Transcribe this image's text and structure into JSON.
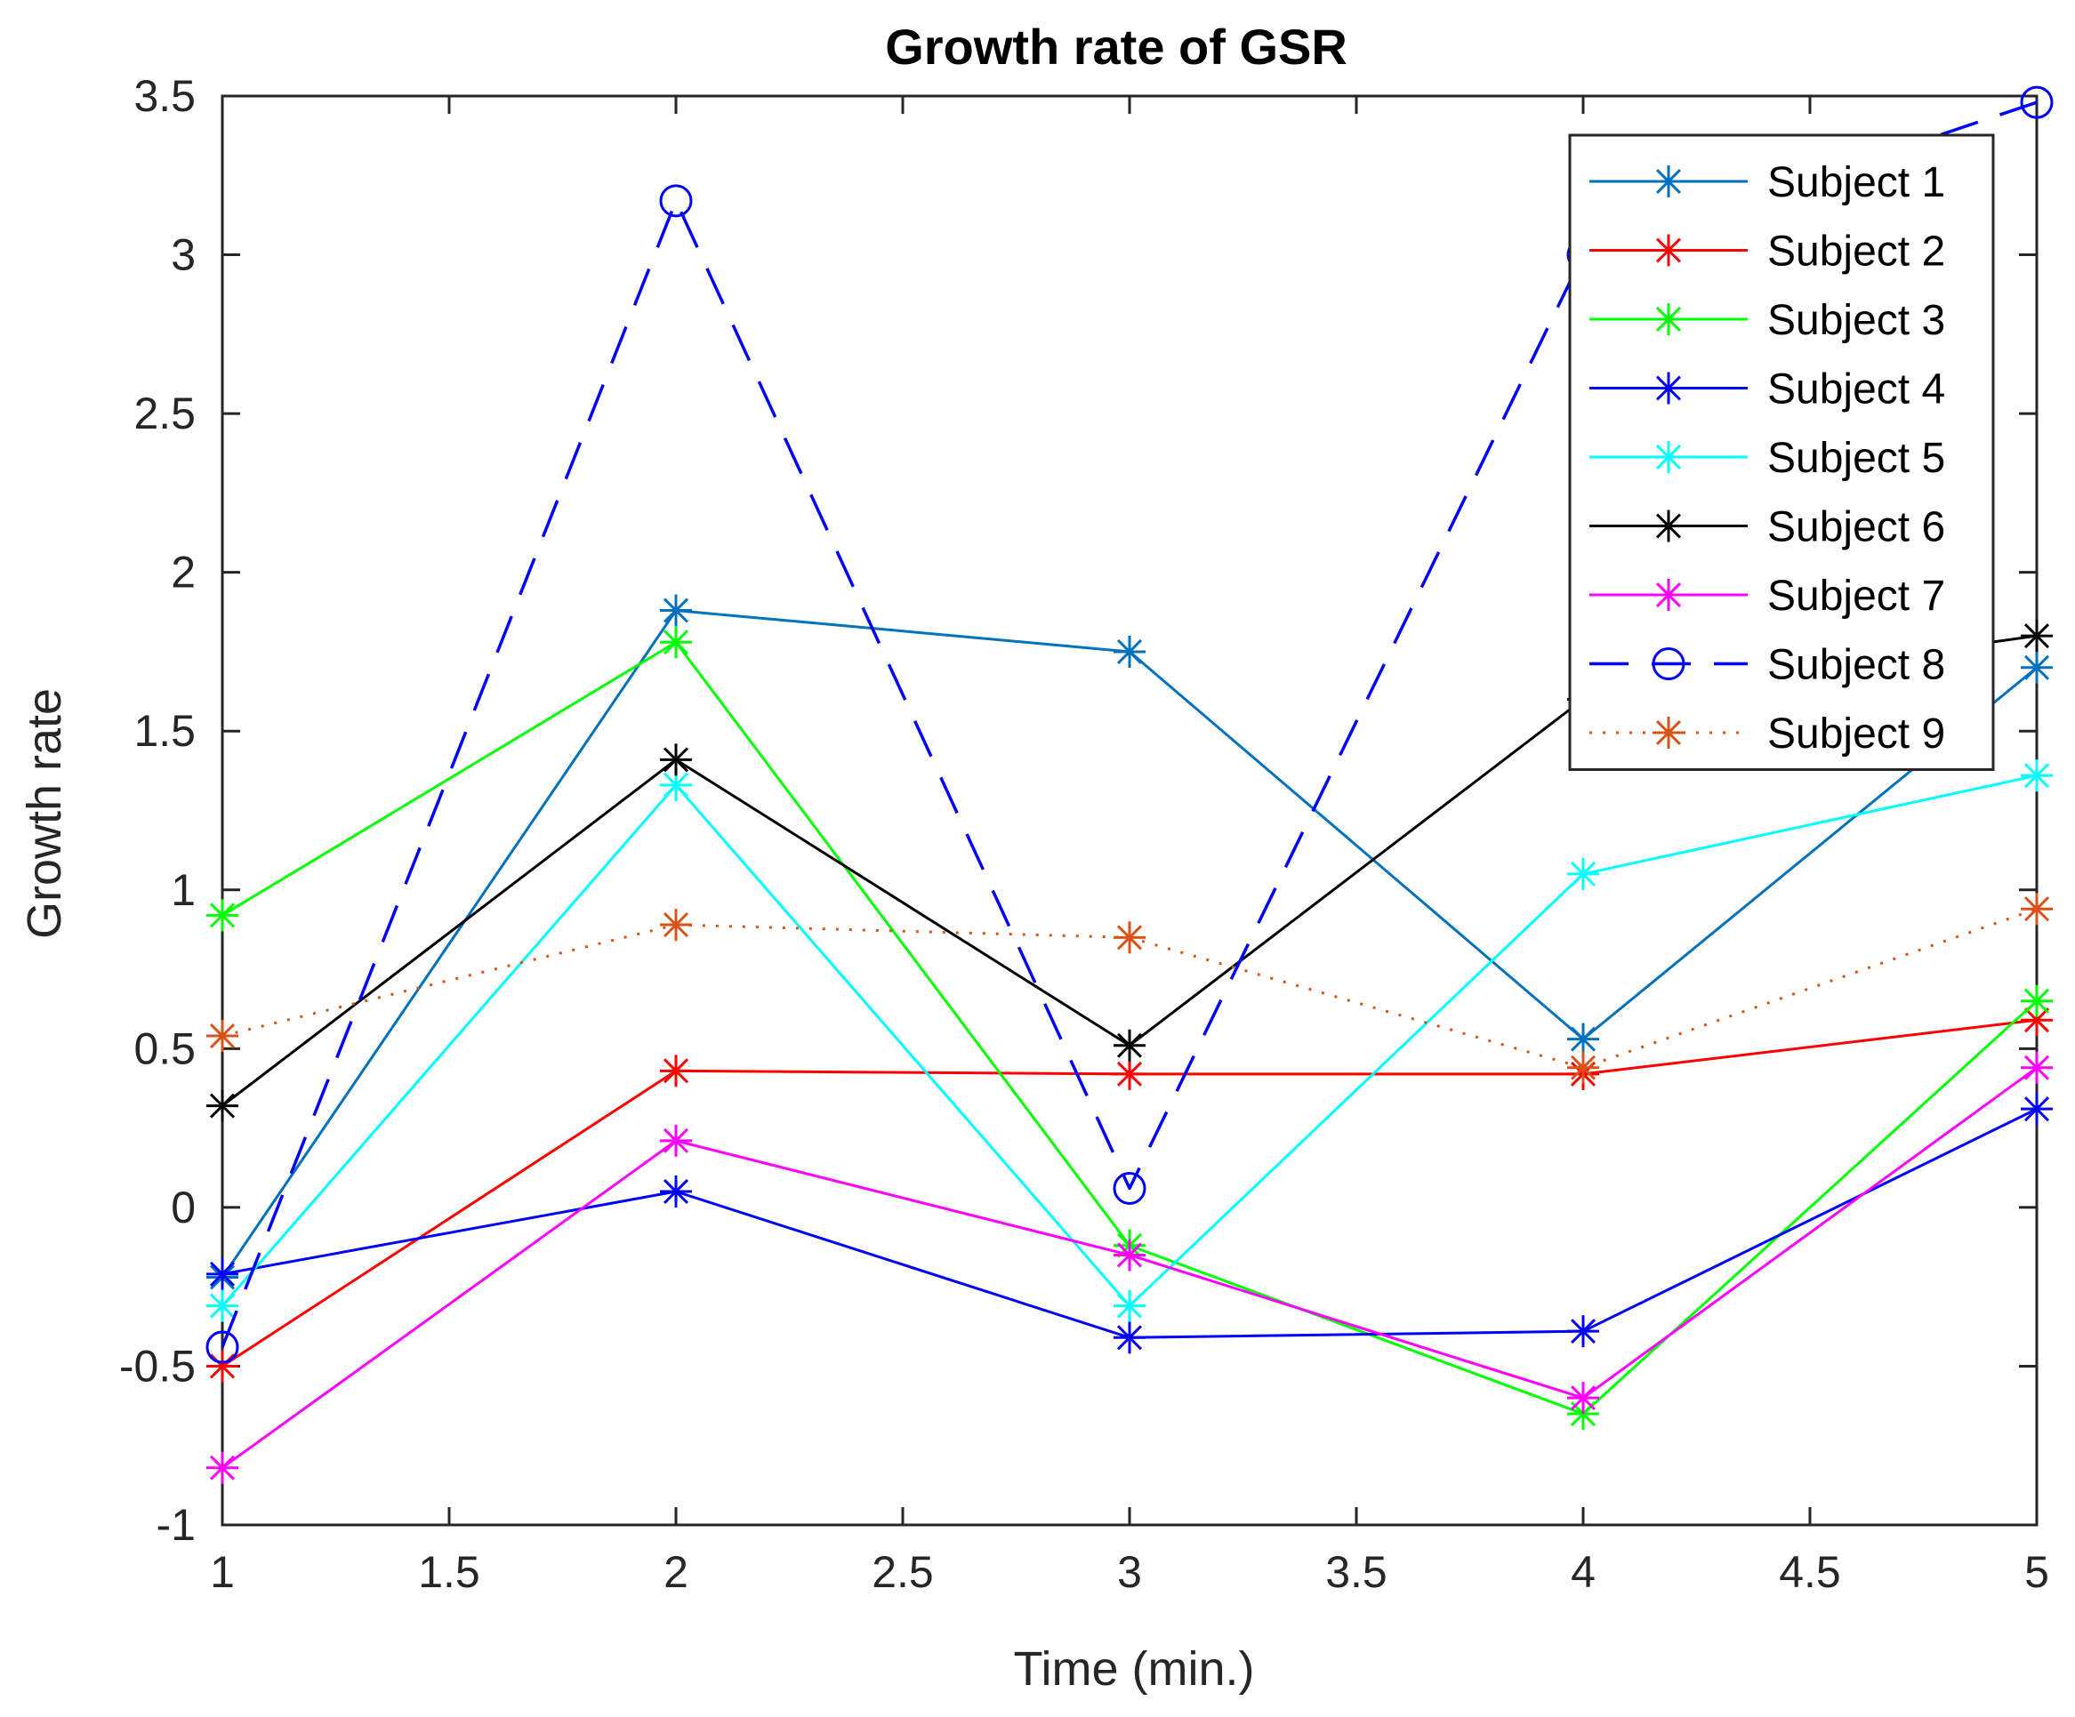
{
  "chart_data": {
    "type": "line",
    "title": "Growth rate of GSR",
    "xlabel": "Time (min.)",
    "ylabel": "Growth rate",
    "x": [
      1,
      2,
      3,
      4,
      5
    ],
    "xlim": [
      1,
      5
    ],
    "ylim": [
      -1,
      3.5
    ],
    "xticks": [
      1,
      1.5,
      2,
      2.5,
      3,
      3.5,
      4,
      4.5,
      5
    ],
    "xtick_labels": [
      "1",
      "1.5",
      "2",
      "2.5",
      "3",
      "3.5",
      "4",
      "4.5",
      "5"
    ],
    "yticks": [
      -1,
      -0.5,
      0,
      0.5,
      1,
      1.5,
      2,
      2.5,
      3,
      3.5
    ],
    "ytick_labels": [
      "-1",
      "-0.5",
      "0",
      "0.5",
      "1",
      "1.5",
      "2",
      "2.5",
      "3",
      "3.5"
    ],
    "grid": false,
    "legend_position": "top-right",
    "series": [
      {
        "name": "Subject 1",
        "color": "#0072BD",
        "line": "solid",
        "marker": "star",
        "values": [
          -0.22,
          1.88,
          1.75,
          0.53,
          1.7
        ]
      },
      {
        "name": "Subject 2",
        "color": "#FF0000",
        "line": "solid",
        "marker": "star",
        "values": [
          -0.5,
          0.43,
          0.42,
          0.42,
          0.59
        ]
      },
      {
        "name": "Subject 3",
        "color": "#00FF00",
        "line": "solid",
        "marker": "star",
        "values": [
          0.92,
          1.78,
          -0.12,
          -0.65,
          0.65
        ]
      },
      {
        "name": "Subject 4",
        "color": "#0000FF",
        "line": "solid",
        "marker": "star",
        "values": [
          -0.21,
          0.05,
          -0.41,
          -0.39,
          0.31
        ]
      },
      {
        "name": "Subject 5",
        "color": "#00FFFF",
        "line": "solid",
        "marker": "star",
        "values": [
          -0.31,
          1.33,
          -0.31,
          1.05,
          1.36
        ]
      },
      {
        "name": "Subject 6",
        "color": "#000000",
        "line": "solid",
        "marker": "star",
        "values": [
          0.32,
          1.41,
          0.51,
          1.6,
          1.8
        ]
      },
      {
        "name": "Subject 7",
        "color": "#FF00FF",
        "line": "solid",
        "marker": "star",
        "values": [
          -0.82,
          0.21,
          -0.15,
          -0.6,
          0.44
        ]
      },
      {
        "name": "Subject 8",
        "color": "#0000FF",
        "line": "dashed",
        "marker": "circle",
        "values": [
          -0.44,
          3.17,
          0.06,
          3.0,
          3.48
        ]
      },
      {
        "name": "Subject 9",
        "color": "#D95319",
        "line": "dotted",
        "marker": "star",
        "values": [
          0.54,
          0.89,
          0.85,
          0.44,
          0.94
        ]
      }
    ]
  }
}
